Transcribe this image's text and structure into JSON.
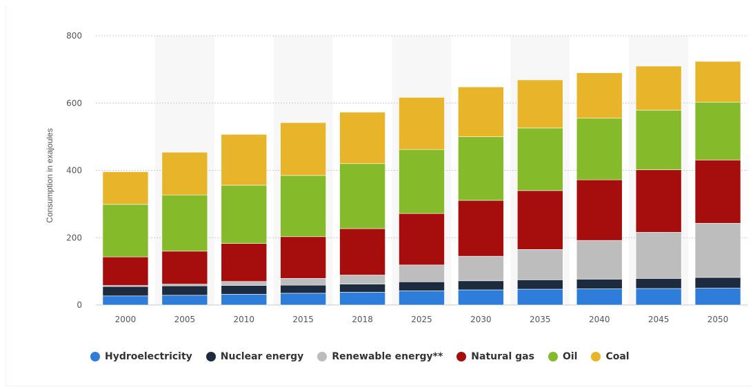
{
  "chart_data": {
    "type": "bar",
    "stacked": true,
    "categories": [
      "2000",
      "2005",
      "2010",
      "2015",
      "2018",
      "2025",
      "2030",
      "2035",
      "2040",
      "2045",
      "2050"
    ],
    "ylabel": "Consumption in exajoules",
    "xlabel": "",
    "ylim": [
      0,
      800
    ],
    "yticks": [
      "0",
      "200",
      "400",
      "600",
      "800"
    ],
    "grid": true,
    "legend_position": "bottom-left",
    "series": [
      {
        "name": "Hydroelectricity",
        "color": "#2e7ddb",
        "values": [
          27,
          29,
          32,
          35,
          38,
          42,
          45,
          47,
          48,
          49,
          50
        ]
      },
      {
        "name": "Nuclear energy",
        "color": "#1d2b3e",
        "values": [
          28,
          28,
          26,
          24,
          24,
          27,
          27,
          28,
          29,
          30,
          32
        ]
      },
      {
        "name": "Renewable energy**",
        "color": "#bdbdbd",
        "values": [
          3,
          5,
          12,
          20,
          27,
          50,
          73,
          90,
          115,
          137,
          161
        ]
      },
      {
        "name": "Natural gas",
        "color": "#a60d0d",
        "values": [
          85,
          98,
          113,
          124,
          138,
          153,
          166,
          175,
          180,
          186,
          188
        ]
      },
      {
        "name": "Oil",
        "color": "#85bb2a",
        "values": [
          156,
          167,
          173,
          182,
          193,
          190,
          189,
          186,
          183,
          177,
          172
        ]
      },
      {
        "name": "Coal",
        "color": "#e8b52a",
        "values": [
          97,
          127,
          151,
          157,
          153,
          155,
          148,
          143,
          135,
          131,
          121
        ]
      }
    ]
  }
}
